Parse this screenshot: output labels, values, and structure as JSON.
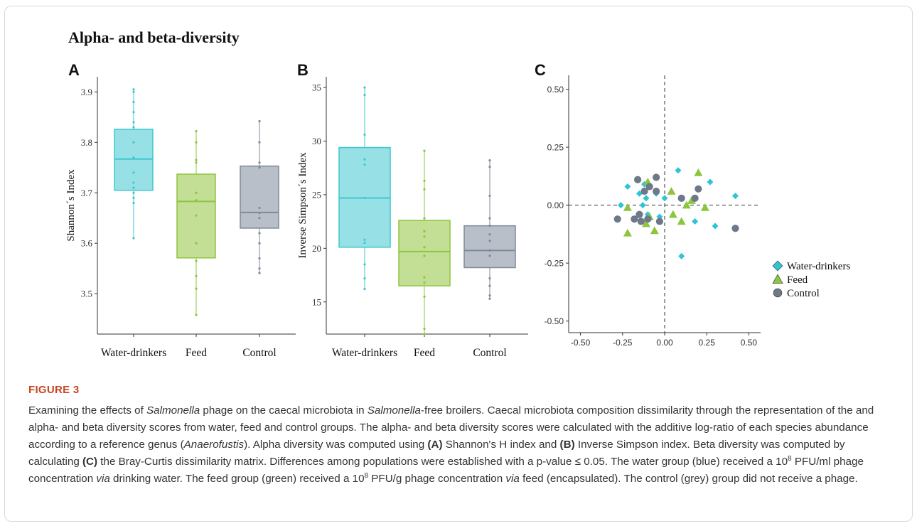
{
  "figure_heading": "Alpha- and beta-diversity",
  "chart_data": [
    {
      "type": "box",
      "panel_label": "A",
      "ylabel": "Shannon´s Index",
      "ylim": [
        3.42,
        3.93
      ],
      "yticks": [
        3.5,
        3.6,
        3.7,
        3.8,
        3.9
      ],
      "categories": [
        "Water-drinkers",
        "Feed",
        "Control"
      ],
      "boxes": [
        {
          "min": 3.61,
          "q1": 3.705,
          "median": 3.767,
          "q3": 3.826,
          "max": 3.905,
          "color": "#3fc7d1"
        },
        {
          "min": 3.458,
          "q1": 3.571,
          "median": 3.683,
          "q3": 3.737,
          "max": 3.822,
          "color": "#8fc43e"
        },
        {
          "min": 3.541,
          "q1": 3.63,
          "median": 3.661,
          "q3": 3.753,
          "max": 3.842,
          "color": "#7e8a9a"
        }
      ],
      "points": [
        [
          3.61,
          3.68,
          3.69,
          3.7,
          3.71,
          3.72,
          3.74,
          3.77,
          3.8,
          3.83,
          3.84,
          3.86,
          3.88,
          3.9,
          3.905
        ],
        [
          3.458,
          3.51,
          3.535,
          3.565,
          3.6,
          3.655,
          3.685,
          3.7,
          3.76,
          3.765,
          3.8,
          3.822
        ],
        [
          3.541,
          3.55,
          3.57,
          3.6,
          3.62,
          3.65,
          3.66,
          3.67,
          3.75,
          3.76,
          3.8,
          3.842
        ]
      ]
    },
    {
      "type": "box",
      "panel_label": "B",
      "ylabel": "Inverse Simpson´s Index",
      "ylim": [
        12,
        36
      ],
      "yticks": [
        15,
        20,
        25,
        30,
        35
      ],
      "categories": [
        "Water-drinkers",
        "Feed",
        "Control"
      ],
      "boxes": [
        {
          "min": 16.2,
          "q1": 20.1,
          "median": 24.7,
          "q3": 29.4,
          "max": 35.0,
          "color": "#3fc7d1"
        },
        {
          "min": 12.0,
          "q1": 16.5,
          "median": 19.7,
          "q3": 22.6,
          "max": 29.1,
          "color": "#8fc43e"
        },
        {
          "min": 15.3,
          "q1": 18.2,
          "median": 19.8,
          "q3": 22.1,
          "max": 28.2,
          "color": "#7e8a9a"
        }
      ],
      "points": [
        [
          16.2,
          17.2,
          18.5,
          20.5,
          20.8,
          24.7,
          27.8,
          28.3,
          30.6,
          34.3,
          35.0
        ],
        [
          12.0,
          12.5,
          15.5,
          16.8,
          17.3,
          19.3,
          20.1,
          21.1,
          21.6,
          22.8,
          25.5,
          26.3,
          29.1
        ],
        [
          15.3,
          15.6,
          16.5,
          17.2,
          19.3,
          19.8,
          20.7,
          21.3,
          22.1,
          22.8,
          24.9,
          27.6,
          28.2
        ]
      ]
    },
    {
      "type": "scatter",
      "panel_label": "C",
      "xlim": [
        -0.57,
        0.57
      ],
      "ylim": [
        -0.55,
        0.56
      ],
      "xticks": [
        -0.5,
        -0.25,
        0.0,
        0.25,
        0.5
      ],
      "yticks": [
        -0.5,
        -0.25,
        0.0,
        0.25,
        0.5
      ],
      "tick_labels": [
        "-0.50",
        "-0.25",
        "0.00",
        "0.25",
        "0.50"
      ],
      "legend_position": "right",
      "series": [
        {
          "name": "Water-drinkers",
          "marker": "diamond",
          "color": "#2ec4d6",
          "points": [
            [
              -0.26,
              0.0
            ],
            [
              -0.22,
              0.08
            ],
            [
              -0.15,
              0.05
            ],
            [
              -0.13,
              0.0
            ],
            [
              -0.12,
              0.09
            ],
            [
              -0.11,
              0.03
            ],
            [
              -0.1,
              -0.04
            ],
            [
              -0.05,
              0.05
            ],
            [
              -0.03,
              -0.05
            ],
            [
              0.0,
              0.03
            ],
            [
              0.08,
              0.15
            ],
            [
              0.1,
              -0.22
            ],
            [
              0.18,
              -0.07
            ],
            [
              0.27,
              0.1
            ],
            [
              0.3,
              -0.09
            ],
            [
              0.42,
              0.04
            ]
          ]
        },
        {
          "name": "Feed",
          "marker": "triangle",
          "color": "#8cc63f",
          "points": [
            [
              -0.22,
              -0.12
            ],
            [
              -0.22,
              -0.01
            ],
            [
              -0.1,
              0.1
            ],
            [
              -0.11,
              -0.08
            ],
            [
              -0.09,
              -0.05
            ],
            [
              -0.06,
              -0.11
            ],
            [
              0.04,
              0.06
            ],
            [
              0.05,
              -0.04
            ],
            [
              0.1,
              -0.07
            ],
            [
              0.13,
              0.0
            ],
            [
              0.16,
              0.02
            ],
            [
              0.2,
              0.14
            ],
            [
              0.24,
              -0.01
            ]
          ]
        },
        {
          "name": "Control",
          "marker": "circle",
          "color": "#6d7888",
          "points": [
            [
              -0.28,
              -0.06
            ],
            [
              -0.18,
              -0.06
            ],
            [
              -0.16,
              0.11
            ],
            [
              -0.15,
              -0.04
            ],
            [
              -0.14,
              -0.07
            ],
            [
              -0.12,
              0.06
            ],
            [
              -0.1,
              -0.06
            ],
            [
              -0.09,
              0.08
            ],
            [
              -0.05,
              0.12
            ],
            [
              -0.05,
              0.06
            ],
            [
              -0.03,
              -0.07
            ],
            [
              0.1,
              0.03
            ],
            [
              0.18,
              0.03
            ],
            [
              0.2,
              0.07
            ],
            [
              0.42,
              -0.1
            ]
          ]
        }
      ]
    }
  ],
  "caption": {
    "label": "FIGURE 3",
    "s1": "Examining the effects of ",
    "salmonella": "Salmonella",
    "s2": " phage on the caecal microbiota in ",
    "s3": "-free broilers. Caecal microbiota composition dissimilarity through the representation of the and alpha- and beta diversity scores from water, feed and control groups. The alpha- and beta diversity scores were calculated with the additive log-ratio of each species abundance according to a reference genus (",
    "genus": "Anaerofustis",
    "s4": "). Alpha diversity was computed using ",
    "refA": "(A)",
    "s5": " Shannon's H index and ",
    "refB": "(B)",
    "s6": " Inverse Simpson index. Beta diversity was computed by calculating ",
    "refC": "(C)",
    "s7": " the Bray-Curtis dissimilarity matrix. Differences among populations were established with a p-value ≤ 0.05. The water group (blue) received a 10",
    "exp": "8",
    "s8": " PFU/ml phage concentration ",
    "via": "via",
    "s9": " drinking water. The feed group (green) received a 10",
    "s10": " PFU/g phage concentration ",
    "s11": " feed (encapsulated). The control (grey) group did not receive a phage."
  }
}
